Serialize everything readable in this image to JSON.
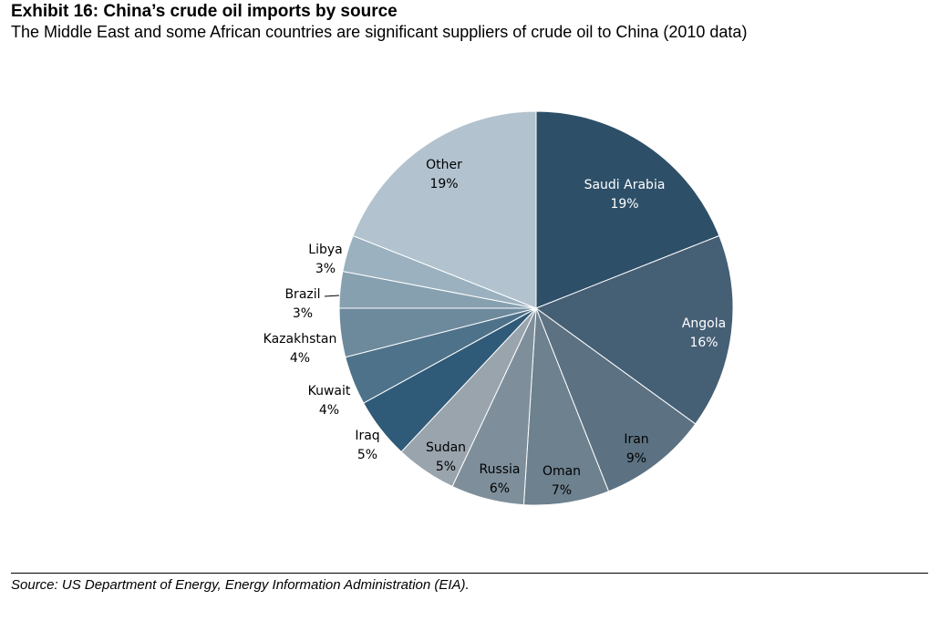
{
  "exhibit": {
    "title": "Exhibit 16: China’s crude oil imports by source",
    "subtitle": "The Middle East and some African countries are significant suppliers of crude oil to China (2010 data)",
    "source": "Source: US Department of Energy, Energy Information Administration (EIA)."
  },
  "chart_data": {
    "type": "pie",
    "start": "12 o'clock",
    "direction": "clockwise",
    "slices": [
      {
        "name": "Saudi Arabia",
        "value": 19,
        "label": "19%",
        "color": "#2d4f68"
      },
      {
        "name": "Angola",
        "value": 16,
        "label": "16%",
        "color": "#455f75"
      },
      {
        "name": "Iran",
        "value": 9,
        "label": "9%",
        "color": "#5c7282"
      },
      {
        "name": "Oman",
        "value": 7,
        "label": "7%",
        "color": "#6d818f"
      },
      {
        "name": "Russia",
        "value": 6,
        "label": "6%",
        "color": "#7e8f9b"
      },
      {
        "name": "Sudan",
        "value": 5,
        "label": "5%",
        "color": "#9aa4ad"
      },
      {
        "name": "Iraq",
        "value": 5,
        "label": "5%",
        "color": "#2f5a78"
      },
      {
        "name": "Kuwait",
        "value": 4,
        "label": "4%",
        "color": "#4e7289"
      },
      {
        "name": "Kazakhstan",
        "value": 4,
        "label": "4%",
        "color": "#6d8a9d"
      },
      {
        "name": "Brazil",
        "value": 3,
        "label": "3%",
        "color": "#86a0b0"
      },
      {
        "name": "Libya",
        "value": 3,
        "label": "3%",
        "color": "#9bb1bf"
      },
      {
        "name": "Other",
        "value": 19,
        "label": "19%",
        "color": "#b2c3cf"
      }
    ]
  }
}
